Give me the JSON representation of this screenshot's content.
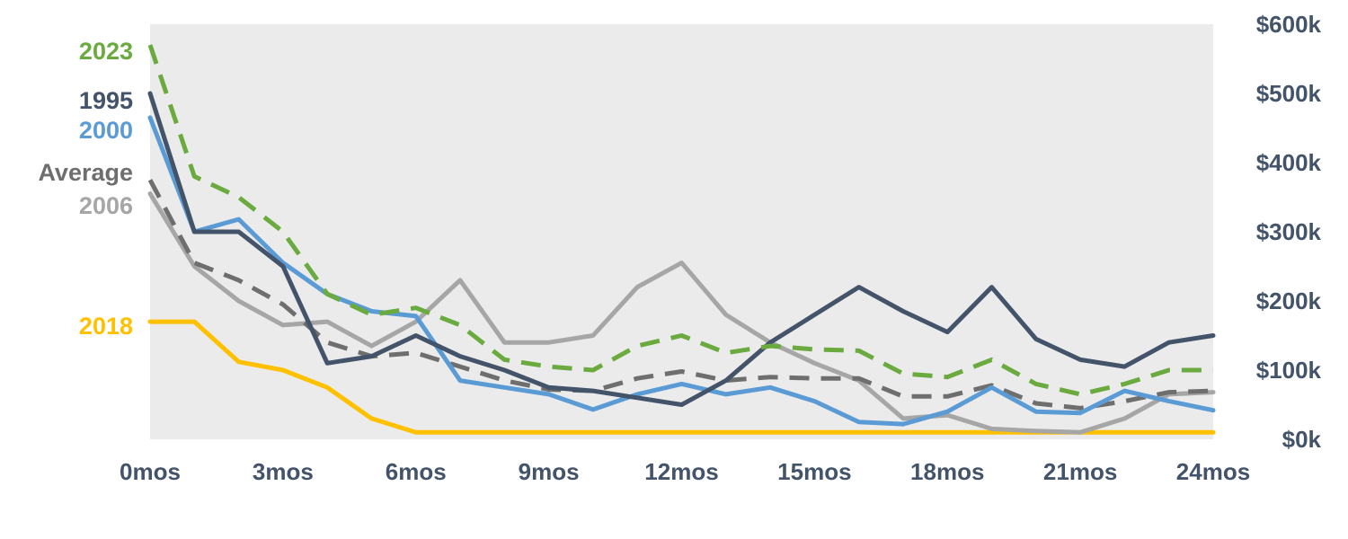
{
  "chart_data": {
    "type": "line",
    "x": [
      0,
      1,
      2,
      3,
      4,
      5,
      6,
      7,
      8,
      9,
      10,
      11,
      12,
      13,
      14,
      15,
      16,
      17,
      18,
      19,
      20,
      21,
      22,
      23,
      24
    ],
    "x_ticks": [
      {
        "value": 0,
        "label": "0mos"
      },
      {
        "value": 3,
        "label": "3mos"
      },
      {
        "value": 6,
        "label": "6mos"
      },
      {
        "value": 9,
        "label": "9mos"
      },
      {
        "value": 12,
        "label": "12mos"
      },
      {
        "value": 15,
        "label": "15mos"
      },
      {
        "value": 18,
        "label": "18mos"
      },
      {
        "value": 21,
        "label": "21mos"
      },
      {
        "value": 24,
        "label": "24mos"
      }
    ],
    "y_axis_side": "right",
    "ylim": [
      0,
      600
    ],
    "y_ticks": [
      {
        "value": 0,
        "label": "$0k"
      },
      {
        "value": 100,
        "label": "$100k"
      },
      {
        "value": 200,
        "label": "$200k"
      },
      {
        "value": 300,
        "label": "$300k"
      },
      {
        "value": 400,
        "label": "$400k"
      },
      {
        "value": 500,
        "label": "$500k"
      },
      {
        "value": 600,
        "label": "$600k"
      }
    ],
    "grid": false,
    "plot_background": "#ebebeb",
    "legend": "left-labels",
    "series": [
      {
        "name": "2023",
        "color": "#6aaa3e",
        "dashed": true,
        "values": [
          570,
          380,
          350,
          300,
          210,
          180,
          190,
          165,
          115,
          105,
          100,
          135,
          150,
          125,
          135,
          130,
          128,
          95,
          90,
          115,
          80,
          65,
          80,
          100,
          100
        ]
      },
      {
        "name": "1995",
        "color": "#435369",
        "dashed": false,
        "values": [
          500,
          300,
          300,
          250,
          110,
          120,
          150,
          120,
          100,
          75,
          70,
          60,
          50,
          85,
          140,
          180,
          220,
          185,
          155,
          220,
          145,
          115,
          105,
          140,
          150
        ]
      },
      {
        "name": "2000",
        "color": "#5b9bd5",
        "dashed": false,
        "values": [
          465,
          300,
          318,
          255,
          210,
          185,
          178,
          85,
          75,
          65,
          43,
          65,
          80,
          65,
          75,
          55,
          25,
          22,
          40,
          75,
          40,
          38,
          70,
          55,
          42
        ]
      },
      {
        "name": "Average",
        "color": "#6e6e6e",
        "dashed": true,
        "values": [
          375,
          255,
          230,
          195,
          140,
          120,
          125,
          105,
          85,
          72,
          70,
          88,
          98,
          85,
          90,
          88,
          88,
          62,
          62,
          78,
          52,
          45,
          55,
          68,
          70
        ]
      },
      {
        "name": "2006",
        "color": "#a6a6a6",
        "dashed": false,
        "values": [
          355,
          250,
          200,
          165,
          170,
          135,
          170,
          230,
          140,
          140,
          150,
          220,
          255,
          180,
          140,
          110,
          85,
          30,
          35,
          15,
          12,
          10,
          30,
          65,
          68
        ]
      },
      {
        "name": "2018",
        "color": "#ffc000",
        "dashed": false,
        "values": [
          170,
          170,
          112,
          100,
          75,
          30,
          10,
          10,
          10,
          10,
          10,
          10,
          10,
          10,
          10,
          10,
          10,
          10,
          10,
          10,
          10,
          10,
          10,
          10,
          10
        ]
      }
    ]
  }
}
